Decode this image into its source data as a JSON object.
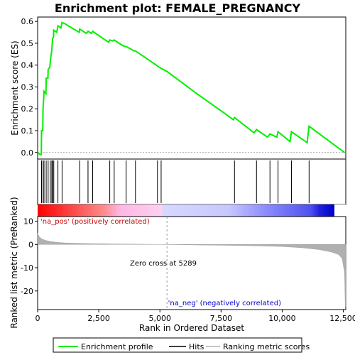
{
  "chart_data": {
    "type": "line",
    "title": "Enrichment plot: FEMALE_PREGNANCY",
    "xlabel": "Rank in Ordered Dataset",
    "es_panel": {
      "ylabel": "Enrichment score (ES)",
      "ylim": [
        -0.03,
        0.62
      ],
      "yticks": [
        0.0,
        0.1,
        0.2,
        0.3,
        0.4,
        0.5,
        0.6
      ],
      "ytick_labels": [
        "0.0",
        "0.1",
        "0.2",
        "0.3",
        "0.4",
        "0.5",
        "0.6"
      ],
      "series_color": "#00ee00",
      "points": [
        [
          0,
          0.0
        ],
        [
          100,
          -0.01
        ],
        [
          150,
          -0.01
        ],
        [
          160,
          0.1
        ],
        [
          210,
          0.1
        ],
        [
          220,
          0.2
        ],
        [
          250,
          0.25
        ],
        [
          260,
          0.28
        ],
        [
          340,
          0.27
        ],
        [
          350,
          0.34
        ],
        [
          420,
          0.34
        ],
        [
          430,
          0.38
        ],
        [
          500,
          0.39
        ],
        [
          520,
          0.42
        ],
        [
          580,
          0.47
        ],
        [
          610,
          0.52
        ],
        [
          650,
          0.53
        ],
        [
          660,
          0.56
        ],
        [
          780,
          0.55
        ],
        [
          830,
          0.58
        ],
        [
          950,
          0.57
        ],
        [
          1000,
          0.595
        ],
        [
          1100,
          0.59
        ],
        [
          1400,
          0.57
        ],
        [
          1700,
          0.55
        ],
        [
          1720,
          0.565
        ],
        [
          2000,
          0.545
        ],
        [
          2060,
          0.555
        ],
        [
          2200,
          0.545
        ],
        [
          2250,
          0.555
        ],
        [
          2700,
          0.52
        ],
        [
          2900,
          0.505
        ],
        [
          2950,
          0.515
        ],
        [
          3080,
          0.51
        ],
        [
          3130,
          0.515
        ],
        [
          3400,
          0.495
        ],
        [
          3560,
          0.485
        ],
        [
          3620,
          0.485
        ],
        [
          3950,
          0.465
        ],
        [
          4000,
          0.465
        ],
        [
          4850,
          0.4
        ],
        [
          4900,
          0.395
        ],
        [
          5050,
          0.385
        ],
        [
          5300,
          0.37
        ],
        [
          6500,
          0.27
        ],
        [
          7700,
          0.175
        ],
        [
          8000,
          0.15
        ],
        [
          8050,
          0.16
        ],
        [
          8850,
          0.09
        ],
        [
          8950,
          0.105
        ],
        [
          9400,
          0.07
        ],
        [
          9500,
          0.085
        ],
        [
          9780,
          0.07
        ],
        [
          9830,
          0.095
        ],
        [
          10320,
          0.05
        ],
        [
          10380,
          0.095
        ],
        [
          11020,
          0.045
        ],
        [
          11100,
          0.12
        ],
        [
          12550,
          0.0
        ]
      ]
    },
    "hits_panel": {
      "hit_positions": [
        160,
        220,
        260,
        350,
        430,
        520,
        580,
        610,
        660,
        830,
        1000,
        1720,
        2060,
        2250,
        2950,
        3130,
        3620,
        4000,
        4900,
        5050,
        8050,
        8950,
        9500,
        9830,
        10380,
        11100
      ]
    },
    "gradient_bar": {
      "left_label": "'na_pos' (positively correlated)",
      "right_label": "'na_neg' (negatively correlated)",
      "left_color": "#ff0000",
      "right_color": "#0000ff"
    },
    "metric_panel": {
      "ylabel": "Ranked list metric (PreRanked)",
      "ylim": [
        -28,
        12
      ],
      "yticks": [
        10,
        0,
        -10,
        -20
      ],
      "ytick_labels": [
        "10",
        "0",
        "-10",
        "-20"
      ],
      "zero_cross_label": "Zero cross at 5289",
      "zero_cross": 5289,
      "fill_color": "#b0b0b0",
      "profile": [
        [
          0,
          5.0
        ],
        [
          50,
          3.5
        ],
        [
          150,
          2.5
        ],
        [
          300,
          1.8
        ],
        [
          500,
          1.3
        ],
        [
          800,
          0.9
        ],
        [
          1200,
          0.6
        ],
        [
          2000,
          0.4
        ],
        [
          3000,
          0.25
        ],
        [
          4000,
          0.12
        ],
        [
          5289,
          0.0
        ],
        [
          6500,
          -0.2
        ],
        [
          8000,
          -0.4
        ],
        [
          9000,
          -0.6
        ],
        [
          10000,
          -0.9
        ],
        [
          10800,
          -1.4
        ],
        [
          11500,
          -2.2
        ],
        [
          12000,
          -3.2
        ],
        [
          12300,
          -4.3
        ],
        [
          12450,
          -6.0
        ],
        [
          12550,
          -12.0
        ],
        [
          12580,
          -27.0
        ],
        [
          12600,
          -27.0
        ]
      ]
    },
    "xlim": [
      0,
      12600
    ],
    "xticks": [
      0,
      2500,
      5000,
      7500,
      10000,
      12500
    ],
    "xtick_labels": [
      "0",
      "2,500",
      "5,000",
      "7,500",
      "10,000",
      "12,500"
    ],
    "legend": {
      "placement": "bottom",
      "entries": [
        {
          "label": "Enrichment profile",
          "color": "#00ee00"
        },
        {
          "label": "Hits",
          "color": "#000000"
        },
        {
          "label": "Ranking metric scores",
          "color": "#b0b0b0"
        }
      ]
    }
  }
}
